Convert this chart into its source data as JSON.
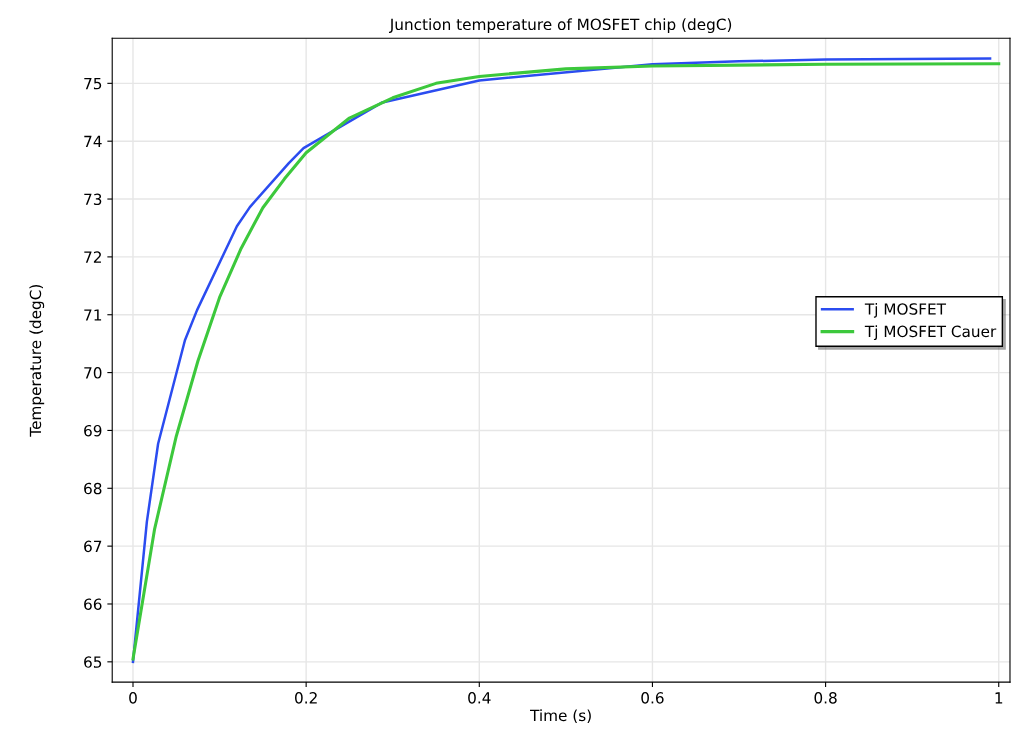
{
  "chart_data": {
    "type": "line",
    "title": "Junction temperature of MOSFET chip (degC)",
    "xlabel": "Time (s)",
    "ylabel": "Temperature (degC)",
    "xlim": [
      -0.024,
      1.013
    ],
    "ylim": [
      64.65,
      75.78
    ],
    "xticks": [
      0,
      0.2,
      0.4,
      0.6,
      0.8,
      1
    ],
    "yticks": [
      65,
      66,
      67,
      68,
      69,
      70,
      71,
      72,
      73,
      74,
      75
    ],
    "grid": true,
    "legend": "right",
    "series": [
      {
        "name": "Tj MOSFET",
        "color": "#2b4cf0",
        "x": [
          0,
          0.016,
          0.029,
          0.06,
          0.074,
          0.12,
          0.135,
          0.18,
          0.197,
          0.288,
          0.4,
          0.6,
          0.7,
          0.8,
          0.99
        ],
        "values": [
          65.0,
          67.42,
          68.77,
          70.56,
          71.08,
          72.53,
          72.86,
          73.62,
          73.88,
          74.67,
          75.05,
          75.33,
          75.38,
          75.41,
          75.43
        ]
      },
      {
        "name": "Tj MOSFET Cauer",
        "color": "#3cc83c",
        "x": [
          0,
          0.025,
          0.05,
          0.075,
          0.1,
          0.125,
          0.15,
          0.175,
          0.2,
          0.25,
          0.3,
          0.35,
          0.4,
          0.5,
          0.6,
          0.8,
          1.0
        ],
        "values": [
          65.05,
          67.3,
          68.9,
          70.2,
          71.3,
          72.15,
          72.85,
          73.35,
          73.8,
          74.4,
          74.75,
          75.0,
          75.12,
          75.25,
          75.3,
          75.33,
          75.34
        ]
      }
    ]
  }
}
